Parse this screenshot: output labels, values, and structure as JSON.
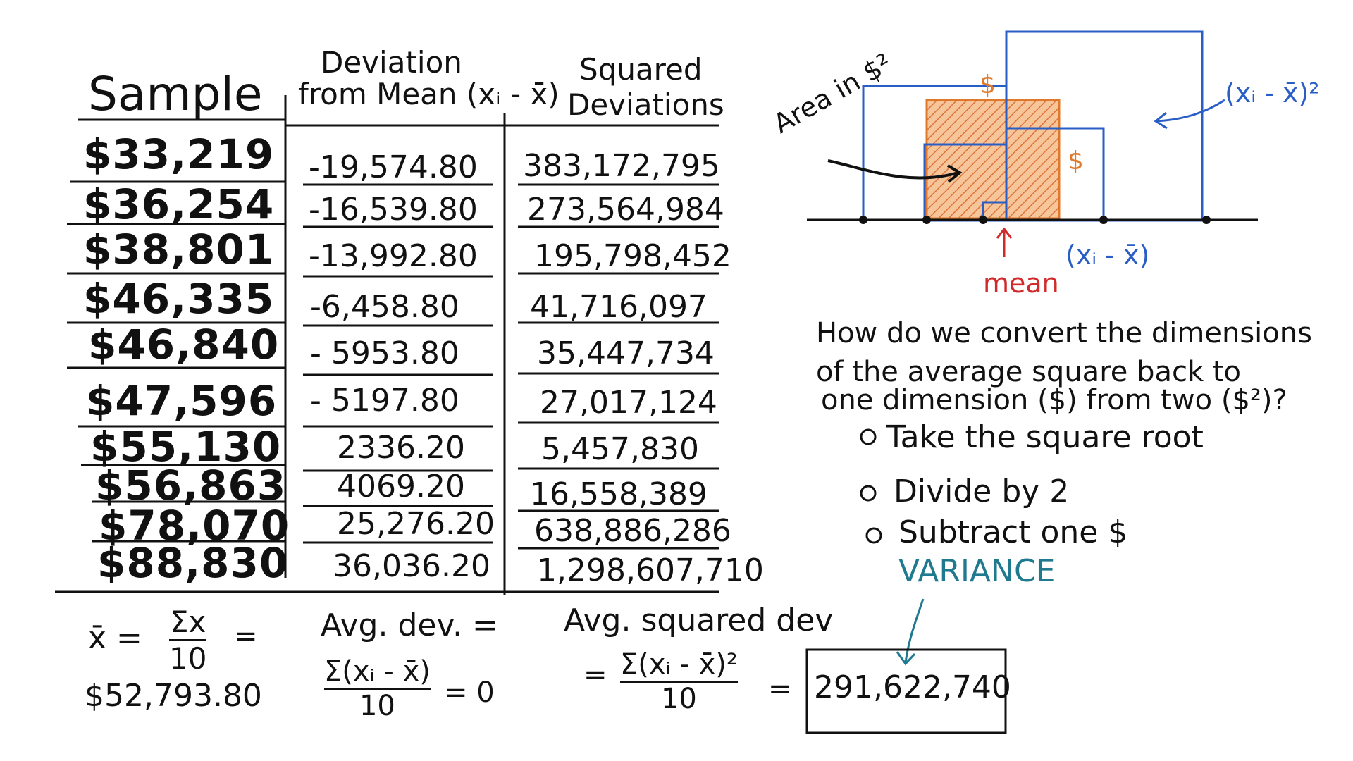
{
  "table": {
    "headers": {
      "sample": "Sample",
      "deviation_line1": "Deviation",
      "deviation_line2": "from Mean (xᵢ - x̄)",
      "squared_line1": "Squared",
      "squared_line2": "Deviations"
    },
    "rows": [
      {
        "sample": "$33,219",
        "deviation": "-19,574.80",
        "squared": "383,172,795"
      },
      {
        "sample": "$36,254",
        "deviation": "-16,539.80",
        "squared": "273,564,984"
      },
      {
        "sample": "$38,801",
        "deviation": "-13,992.80",
        "squared": "195,798,452"
      },
      {
        "sample": "$46,335",
        "deviation": "-6,458.80",
        "squared": "41,716,097"
      },
      {
        "sample": "$46,840",
        "deviation": "- 5953.80",
        "squared": "35,447,734"
      },
      {
        "sample": "$47,596",
        "deviation": "- 5197.80",
        "squared": "27,017,124"
      },
      {
        "sample": "$55,130",
        "deviation": "2336.20",
        "squared": "5,457,830"
      },
      {
        "sample": "$56,863",
        "deviation": "4069.20",
        "squared": "16,558,389"
      },
      {
        "sample": "$78,070",
        "deviation": "25,276.20",
        "squared": "638,886,286"
      },
      {
        "sample": "$88,830",
        "deviation": "36,036.20",
        "squared": "1,298,607,710"
      }
    ]
  },
  "formulas": {
    "mean_lhs": "x̄ =",
    "mean_num": "Σx",
    "mean_den": "10",
    "mean_eq": "=",
    "mean_value": "$52,793.80",
    "avgdev_label": "Avg. dev. =",
    "avgdev_num": "Σ(xᵢ - x̄)",
    "avgdev_den": "10",
    "avgdev_result": "= 0",
    "avgsq_label": "Avg. squared dev",
    "avgsq_eq": "=",
    "avgsq_num": "Σ(xᵢ - x̄)²",
    "avgsq_den": "10",
    "avgsq_eq2": "=",
    "variance_value": "291,622,740",
    "variance_label": "VARIANCE"
  },
  "diagram": {
    "area_label": "Area in $²",
    "square_label": "(xᵢ - x̄)²",
    "dollar1": "$",
    "dollar2": "$",
    "axis_label": "(xᵢ - x̄)",
    "mean_label": "mean",
    "colors": {
      "blue": "#2a5ec7",
      "orange": "#e07a2a",
      "red": "#d22a2a"
    }
  },
  "question": {
    "line1": "How do we convert the dimensions",
    "line2": "of the average square back to",
    "line3": "one dimension ($) from two ($²)?",
    "options": [
      "Take the square root",
      "Divide by 2",
      "Subtract one $"
    ]
  }
}
